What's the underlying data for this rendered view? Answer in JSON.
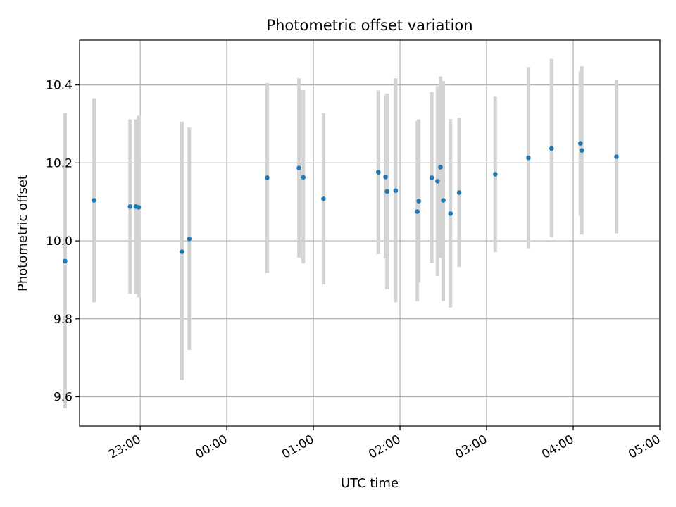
{
  "chart_data": {
    "type": "scatter",
    "title": "Photometric offset variation",
    "xlabel": "UTC time",
    "ylabel": "Photometric offset",
    "grid": true,
    "ylim": [
      9.525,
      10.515
    ],
    "xlim": [
      "22:18",
      "05:00"
    ],
    "x_ticks": [
      "23:00",
      "00:00",
      "01:00",
      "02:00",
      "03:00",
      "04:00",
      "05:00"
    ],
    "y_ticks": [
      9.6,
      9.8,
      10.0,
      10.2,
      10.4
    ],
    "y_tick_labels": [
      "9.6",
      "9.8",
      "10.0",
      "10.2",
      "10.4"
    ],
    "marker_color": "#1f77b4",
    "errorbar_color": "#d3d3d3",
    "points": [
      {
        "x": "22:08",
        "y": 9.948,
        "low": 9.57,
        "high": 10.328
      },
      {
        "x": "22:28",
        "y": 10.104,
        "low": 9.842,
        "high": 10.366
      },
      {
        "x": "22:53",
        "y": 10.088,
        "low": 9.864,
        "high": 10.312
      },
      {
        "x": "22:57",
        "y": 10.088,
        "low": 9.864,
        "high": 10.312
      },
      {
        "x": "22:59",
        "y": 10.086,
        "low": 9.855,
        "high": 10.321
      },
      {
        "x": "23:29",
        "y": 9.972,
        "low": 9.643,
        "high": 10.306
      },
      {
        "x": "23:34",
        "y": 10.005,
        "low": 9.72,
        "high": 10.291
      },
      {
        "x": "00:28",
        "y": 10.162,
        "low": 9.918,
        "high": 10.405
      },
      {
        "x": "00:50",
        "y": 10.187,
        "low": 9.957,
        "high": 10.417
      },
      {
        "x": "00:53",
        "y": 10.163,
        "low": 9.942,
        "high": 10.387
      },
      {
        "x": "01:07",
        "y": 10.108,
        "low": 9.888,
        "high": 10.328
      },
      {
        "x": "01:45",
        "y": 10.176,
        "low": 9.966,
        "high": 10.386
      },
      {
        "x": "01:50",
        "y": 10.164,
        "low": 9.955,
        "high": 10.373
      },
      {
        "x": "01:51",
        "y": 10.127,
        "low": 9.876,
        "high": 10.378
      },
      {
        "x": "01:57",
        "y": 10.129,
        "low": 9.842,
        "high": 10.417
      },
      {
        "x": "02:12",
        "y": 10.075,
        "low": 9.845,
        "high": 10.308
      },
      {
        "x": "02:13",
        "y": 10.102,
        "low": 9.894,
        "high": 10.312
      },
      {
        "x": "02:22",
        "y": 10.162,
        "low": 9.943,
        "high": 10.382
      },
      {
        "x": "02:26",
        "y": 10.153,
        "low": 9.91,
        "high": 10.397
      },
      {
        "x": "02:28",
        "y": 10.189,
        "low": 9.956,
        "high": 10.422
      },
      {
        "x": "02:30",
        "y": 10.104,
        "low": 9.846,
        "high": 10.41
      },
      {
        "x": "02:35",
        "y": 10.07,
        "low": 9.829,
        "high": 10.313
      },
      {
        "x": "02:41",
        "y": 10.124,
        "low": 9.933,
        "high": 10.316
      },
      {
        "x": "03:06",
        "y": 10.171,
        "low": 9.971,
        "high": 10.37
      },
      {
        "x": "03:29",
        "y": 10.213,
        "low": 9.981,
        "high": 10.446
      },
      {
        "x": "03:45",
        "y": 10.237,
        "low": 10.009,
        "high": 10.467
      },
      {
        "x": "04:05",
        "y": 10.25,
        "low": 10.064,
        "high": 10.435
      },
      {
        "x": "04:06",
        "y": 10.232,
        "low": 10.016,
        "high": 10.448
      },
      {
        "x": "04:30",
        "y": 10.216,
        "low": 10.019,
        "high": 10.413
      }
    ]
  }
}
